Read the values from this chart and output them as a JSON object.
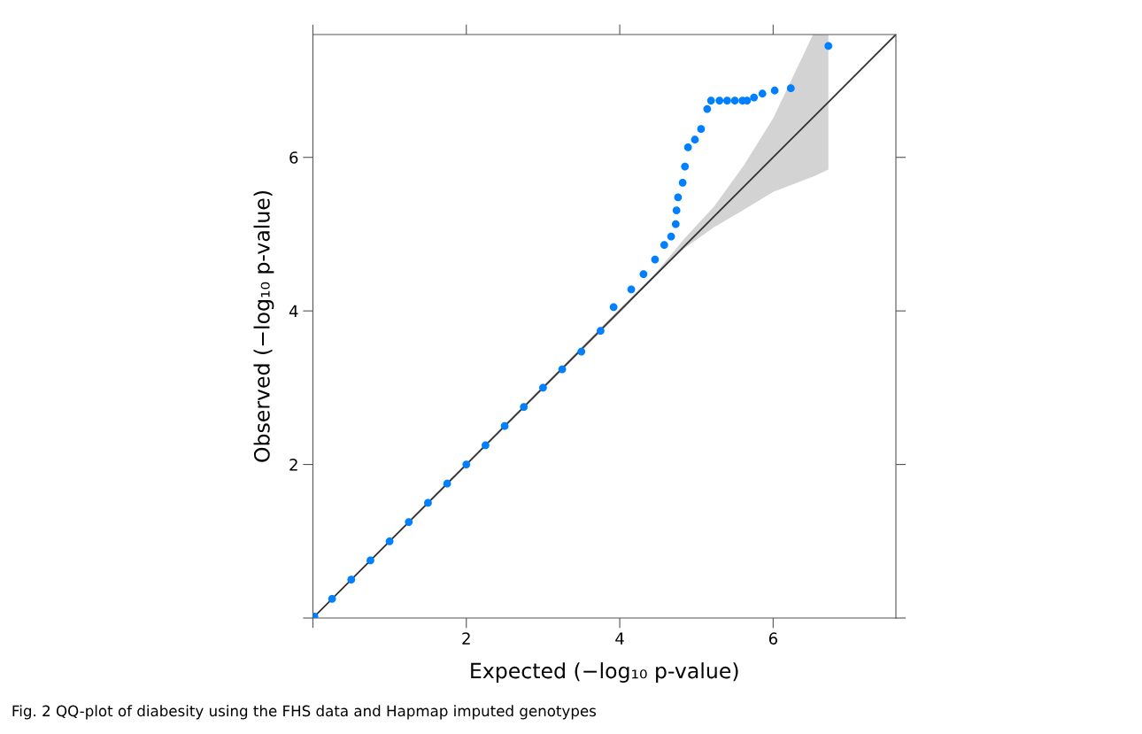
{
  "chart_data": {
    "type": "scatter",
    "xlabel": "Expected (−log₁₀ p-value)",
    "ylabel": "Observed (−log₁₀ p-value)",
    "annotations": [
      "Fig. 2 QQ-plot of diabesity using the FHS data and Hapmap imputed genotypes"
    ],
    "xlim": [
      0,
      7.6
    ],
    "ylim": [
      0,
      7.6
    ],
    "xticks": [
      {
        "value": 0,
        "label": null
      },
      2,
      4,
      6
    ],
    "yticks": [
      {
        "value": 0,
        "label": null
      },
      2,
      4,
      6
    ],
    "grid": false,
    "marker": "circle",
    "series": [
      {
        "type": "line",
        "color": "#333333",
        "line_style": "solid",
        "marker": "none",
        "x": [
          0,
          4,
          4.46,
          4.85,
          5.23,
          5.62,
          6.0,
          6.52,
          6.72,
          7.6
        ],
        "values": [
          0,
          4,
          4.46,
          4.85,
          5.23,
          5.62,
          6.0,
          6.52,
          6.72,
          7.6
        ],
        "lower": [
          0,
          3.97,
          4.46,
          4.82,
          5.09,
          5.32,
          5.55,
          5.75,
          5.84,
          null
        ],
        "upper": [
          0,
          4.03,
          4.48,
          4.95,
          5.36,
          5.9,
          6.51,
          7.6,
          7.6,
          null
        ]
      },
      {
        "color": "#0080ff",
        "x": [
          0.02,
          0.25,
          0.5,
          0.75,
          1.0,
          1.25,
          1.5,
          1.75,
          2.0,
          2.25,
          2.5,
          2.75,
          3.0,
          3.25,
          3.5,
          3.75,
          3.92,
          4.15,
          4.31,
          4.46,
          4.58,
          4.67,
          4.73,
          4.74,
          4.76,
          4.82,
          4.85,
          4.89,
          4.98,
          5.06,
          5.14,
          5.19,
          5.3,
          5.4,
          5.5,
          5.6,
          5.66,
          5.75,
          5.86,
          6.02,
          6.23,
          6.72
        ],
        "values": [
          0.02,
          0.25,
          0.5,
          0.75,
          1.0,
          1.25,
          1.5,
          1.75,
          2.0,
          2.25,
          2.5,
          2.75,
          3.0,
          3.24,
          3.47,
          3.74,
          4.05,
          4.28,
          4.48,
          4.67,
          4.86,
          4.97,
          5.13,
          5.31,
          5.48,
          5.67,
          5.88,
          6.13,
          6.23,
          6.37,
          6.63,
          6.74,
          6.74,
          6.74,
          6.74,
          6.74,
          6.74,
          6.78,
          6.83,
          6.87,
          6.9,
          7.45
        ]
      }
    ]
  }
}
